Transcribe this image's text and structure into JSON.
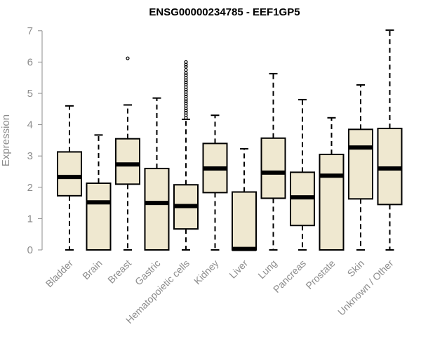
{
  "chart_data": {
    "type": "box",
    "title": "ENSG00000234785 - EEF1GP5",
    "xlabel": "",
    "ylabel": "Expression",
    "ylim": [
      0,
      7
    ],
    "yticks": [
      "0",
      "1",
      "2",
      "3",
      "4",
      "5",
      "6",
      "7"
    ],
    "grid": false,
    "box_fill": "#efe8d0",
    "categories": [
      "Bladder",
      "Brain",
      "Breast",
      "Gastric",
      "Hematopoietic cells",
      "Kidney",
      "Liver",
      "Lung",
      "Pancreas",
      "Prostate",
      "Skin",
      "Unknown / Other"
    ],
    "boxes": [
      {
        "min": 0,
        "q1": 1.73,
        "median": 2.33,
        "q3": 3.13,
        "max": 4.6,
        "outliers": []
      },
      {
        "min": 0,
        "q1": 0,
        "median": 1.52,
        "q3": 2.13,
        "max": 3.67,
        "outliers": []
      },
      {
        "min": 0,
        "q1": 2.1,
        "median": 2.73,
        "q3": 3.55,
        "max": 4.63,
        "outliers": [
          6.12
        ]
      },
      {
        "min": 0,
        "q1": 0,
        "median": 1.5,
        "q3": 2.6,
        "max": 4.85,
        "outliers": []
      },
      {
        "min": 0,
        "q1": 0.67,
        "median": 1.4,
        "q3": 2.08,
        "max": 4.17,
        "outliers": [
          4.22,
          4.3,
          4.38,
          4.45,
          4.52,
          4.6,
          4.68,
          4.75,
          4.82,
          4.9,
          4.97,
          5.05,
          5.12,
          5.2,
          5.28,
          5.35,
          5.42,
          5.5,
          5.58,
          5.65,
          5.75,
          5.85,
          5.92,
          6.0
        ]
      },
      {
        "min": 0,
        "q1": 1.83,
        "median": 2.6,
        "q3": 3.4,
        "max": 4.3,
        "outliers": []
      },
      {
        "min": 0,
        "q1": 0,
        "median": 0.03,
        "q3": 1.85,
        "max": 3.23,
        "outliers": []
      },
      {
        "min": 0,
        "q1": 1.65,
        "median": 2.47,
        "q3": 3.57,
        "max": 5.63,
        "outliers": []
      },
      {
        "min": 0,
        "q1": 0.78,
        "median": 1.68,
        "q3": 2.48,
        "max": 4.8,
        "outliers": []
      },
      {
        "min": 0,
        "q1": 0,
        "median": 2.37,
        "q3": 3.05,
        "max": 4.22,
        "outliers": []
      },
      {
        "min": 0,
        "q1": 1.63,
        "median": 3.27,
        "q3": 3.85,
        "max": 5.27,
        "outliers": []
      },
      {
        "min": 0,
        "q1": 1.45,
        "median": 2.6,
        "q3": 3.88,
        "max": 7.02,
        "outliers": []
      }
    ]
  }
}
